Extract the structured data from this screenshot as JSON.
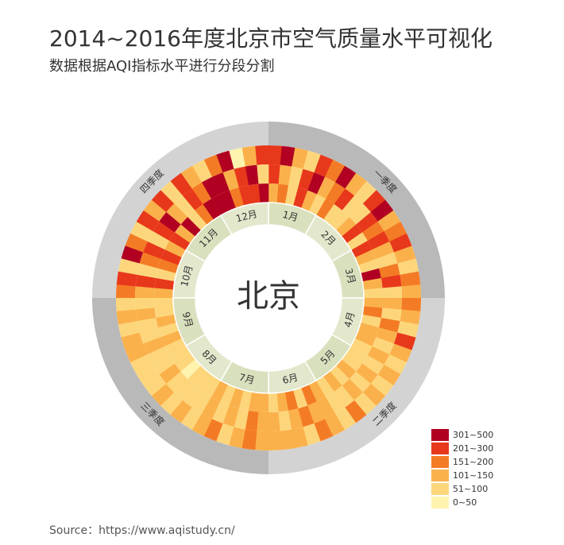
{
  "chart_data": {
    "type": "radial-heatmap",
    "title": "2014~2016年度北京市空气质量水平可视化",
    "subtitle": "数据根据AQI指标水平进行分段分割",
    "center_label": "北京",
    "source": "Source：https://www.aqistudy.cn/",
    "months": [
      "1月",
      "2月",
      "3月",
      "4月",
      "5月",
      "6月",
      "7月",
      "8月",
      "9月",
      "10月",
      "11月",
      "12月"
    ],
    "quarters": [
      "一季度",
      "二季度",
      "三季度",
      "四季度"
    ],
    "legend": [
      {
        "label": "301~500",
        "min": 301,
        "max": 500,
        "color": "#b10021"
      },
      {
        "label": "201~300",
        "min": 201,
        "max": 300,
        "color": "#e8381b"
      },
      {
        "label": "151~200",
        "min": 151,
        "max": 200,
        "color": "#f47b25"
      },
      {
        "label": "101~150",
        "min": 101,
        "max": 150,
        "color": "#fbb14b"
      },
      {
        "label": "51~100",
        "min": 51,
        "max": 100,
        "color": "#fdd67c"
      },
      {
        "label": "0~50",
        "min": 0,
        "max": 50,
        "color": "#fff3b0"
      }
    ],
    "rings": [
      [
        210,
        320,
        150,
        90,
        260,
        180,
        340,
        120,
        60,
        230,
        410,
        150,
        180,
        250,
        110,
        70,
        190,
        140,
        160,
        120,
        85,
        210,
        130,
        95,
        110,
        75,
        140,
        95,
        160,
        80,
        120,
        165,
        90,
        140,
        105,
        130,
        150,
        190,
        110,
        85,
        175,
        125,
        95,
        130,
        70,
        115,
        90,
        60,
        80,
        140,
        105,
        65,
        120,
        90,
        160,
        280,
        70,
        340,
        190,
        60,
        210,
        120,
        270,
        80,
        230,
        150,
        60,
        190,
        310,
        45,
        120,
        260
      ],
      [
        290,
        150,
        55,
        220,
        380,
        130,
        170,
        300,
        95,
        60,
        210,
        160,
        230,
        120,
        85,
        180,
        260,
        70,
        140,
        95,
        175,
        110,
        80,
        150,
        90,
        130,
        70,
        115,
        85,
        100,
        145,
        105,
        170,
        120,
        95,
        135,
        110,
        160,
        95,
        130,
        80,
        120,
        70,
        90,
        55,
        80,
        110,
        65,
        85,
        120,
        60,
        95,
        140,
        75,
        130,
        210,
        65,
        170,
        250,
        90,
        240,
        360,
        110,
        70,
        290,
        180,
        320,
        450,
        140,
        260,
        380,
        90
      ],
      [
        110,
        180,
        60,
        240,
        130,
        70,
        200,
        80,
        55,
        150,
        230,
        90,
        260,
        140,
        90,
        310,
        120,
        75,
        120,
        170,
        85,
        105,
        140,
        65,
        95,
        70,
        125,
        90,
        110,
        80,
        130,
        155,
        100,
        175,
        115,
        90,
        105,
        140,
        80,
        120,
        95,
        150,
        75,
        60,
        95,
        50,
        85,
        70,
        90,
        110,
        65,
        130,
        80,
        100,
        150,
        230,
        60,
        190,
        280,
        110,
        270,
        120,
        310,
        90,
        200,
        350,
        380,
        420,
        160,
        290,
        230,
        340
      ]
    ]
  }
}
